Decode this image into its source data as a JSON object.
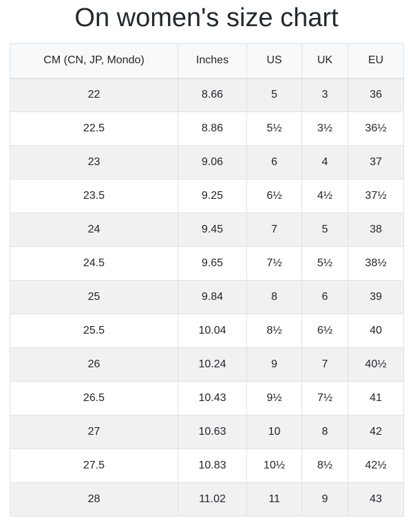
{
  "page": {
    "title": "On women's size chart"
  },
  "chart_data": {
    "type": "table",
    "title": "On women's size chart",
    "columns": [
      "CM (CN, JP, Mondo)",
      "Inches",
      "US",
      "UK",
      "EU"
    ],
    "rows": [
      [
        "22",
        "8.66",
        "5",
        "3",
        "36"
      ],
      [
        "22.5",
        "8.86",
        "5½",
        "3½",
        "36½"
      ],
      [
        "23",
        "9.06",
        "6",
        "4",
        "37"
      ],
      [
        "23.5",
        "9.25",
        "6½",
        "4½",
        "37½"
      ],
      [
        "24",
        "9.45",
        "7",
        "5",
        "38"
      ],
      [
        "24.5",
        "9.65",
        "7½",
        "5½",
        "38½"
      ],
      [
        "25",
        "9.84",
        "8",
        "6",
        "39"
      ],
      [
        "25.5",
        "10.04",
        "8½",
        "6½",
        "40"
      ],
      [
        "26",
        "10.24",
        "9",
        "7",
        "40½"
      ],
      [
        "26.5",
        "10.43",
        "9½",
        "7½",
        "41"
      ],
      [
        "27",
        "10.63",
        "10",
        "8",
        "42"
      ],
      [
        "27.5",
        "10.83",
        "10½",
        "8½",
        "42½"
      ],
      [
        "28",
        "11.02",
        "11",
        "9",
        "43"
      ]
    ],
    "layout": {
      "striped_rows": "odd",
      "grid": true,
      "text_align": "center"
    }
  },
  "style": {
    "header_bg": "#f8f9fa",
    "stripe_bg": "#f1f1f2",
    "border_color": "#dee2e6",
    "text_color": "#212529"
  }
}
